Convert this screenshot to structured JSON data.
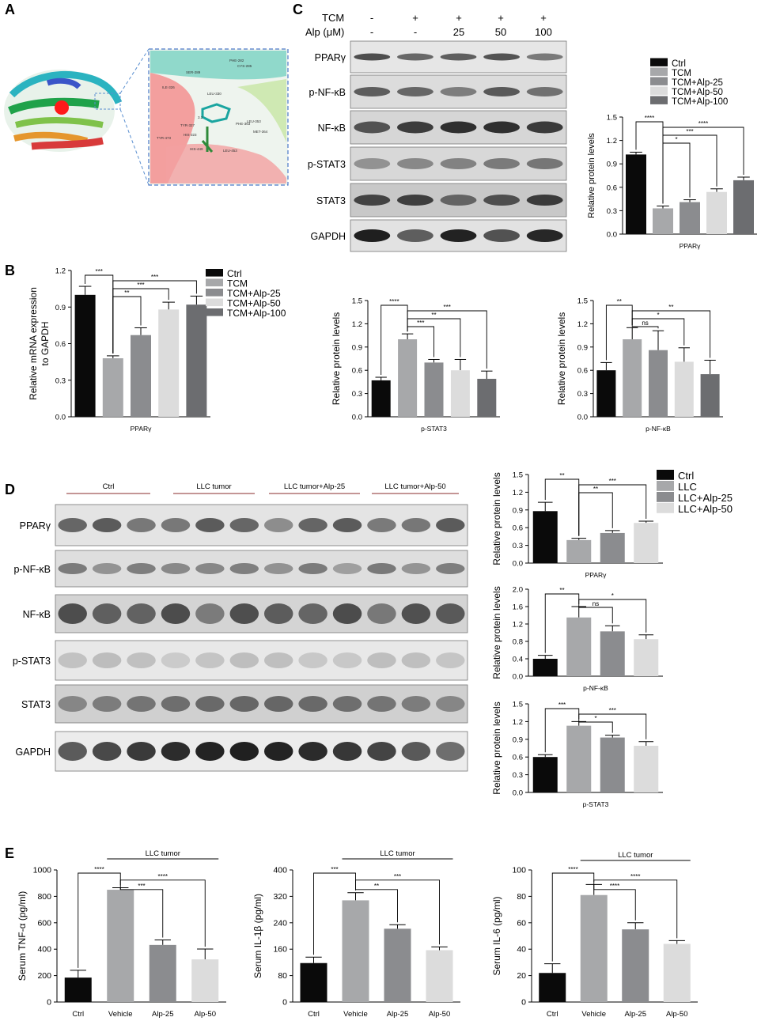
{
  "panels": {
    "A": "A",
    "B": "B",
    "C": "C",
    "D": "D",
    "E": "E"
  },
  "colors": {
    "ctrl": "#0a0a0a",
    "tcm": "#a7a8aa",
    "alp25": "#8b8c8f",
    "alp50": "#dcdcdc",
    "alp100": "#6c6d70"
  },
  "panel_a": {
    "residue_labels": [
      "PHE-282",
      "CYS-285",
      "SER-289",
      "ILE-326",
      "LEU-330",
      "TYR-327",
      "HIS-323",
      "PHE-363",
      "LEU-353",
      "MET-364",
      "HIS-449",
      "LEU-453",
      "TYR-473",
      "3.2"
    ]
  },
  "panel_c": {
    "rows": [
      "TCM",
      "Alp (μM)"
    ],
    "treatment": [
      "-",
      "+",
      "+",
      "+",
      "+"
    ],
    "alp": [
      "-",
      "-",
      "25",
      "50",
      "100"
    ],
    "blots": [
      "PPARγ",
      "p-NF-κB",
      "NF-κB",
      "p-STAT3",
      "STAT3",
      "GAPDH"
    ]
  },
  "panel_d": {
    "groups": [
      "Ctrl",
      "LLC tumor",
      "LLC tumor+Alp-25",
      "LLC tumor+Alp-50"
    ],
    "blots": [
      "PPARγ",
      "p-NF-κB",
      "NF-κB",
      "p-STAT3",
      "STAT3",
      "GAPDH"
    ]
  },
  "chart_data": [
    {
      "id": "C_PPARg",
      "type": "bar",
      "categories": [
        "Ctrl",
        "TCM",
        "TCM+Alp-25",
        "TCM+Alp-50",
        "TCM+Alp-100"
      ],
      "values": [
        1.02,
        0.33,
        0.41,
        0.54,
        0.69
      ],
      "errors": [
        0.03,
        0.03,
        0.03,
        0.04,
        0.04
      ],
      "ylabel": "Relative protein levels",
      "xlabel": "PPARγ",
      "ylim": [
        0,
        1.5
      ],
      "yticks": [
        "0.0",
        "0.3",
        "0.6",
        "0.9",
        "1.2",
        "1.5"
      ],
      "legend": [
        "Ctrl",
        "TCM",
        "TCM+Alp-25",
        "TCM+Alp-50",
        "TCM+Alp-100"
      ],
      "legend_position": "top",
      "significance": [
        {
          "from": 0,
          "to": 1,
          "label": "****"
        },
        {
          "from": 1,
          "to": 2,
          "label": "*"
        },
        {
          "from": 1,
          "to": 3,
          "label": "***"
        },
        {
          "from": 1,
          "to": 4,
          "label": "****"
        }
      ]
    },
    {
      "id": "B_mRNA",
      "type": "bar",
      "categories": [
        "Ctrl",
        "TCM",
        "TCM+Alp-25",
        "TCM+Alp-50",
        "TCM+Alp-100"
      ],
      "values": [
        1.0,
        0.48,
        0.67,
        0.88,
        0.92
      ],
      "errors": [
        0.07,
        0.02,
        0.06,
        0.06,
        0.07
      ],
      "ylabel": "Relative mRNA expression\nto GAPDH",
      "xlabel": "PPARγ",
      "ylim": [
        0,
        1.2
      ],
      "yticks": [
        "0.0",
        "0.3",
        "0.6",
        "0.9",
        "1.2"
      ],
      "legend": [
        "Ctrl",
        "TCM",
        "TCM+Alp-25",
        "TCM+Alp-50",
        "TCM+Alp-100"
      ],
      "legend_position": "right",
      "significance": [
        {
          "from": 0,
          "to": 1,
          "label": "***"
        },
        {
          "from": 1,
          "to": 2,
          "label": "**"
        },
        {
          "from": 1,
          "to": 3,
          "label": "***"
        },
        {
          "from": 1,
          "to": 4,
          "label": "***"
        }
      ]
    },
    {
      "id": "B_pSTAT3",
      "type": "bar",
      "categories": [
        "Ctrl",
        "TCM",
        "TCM+Alp-25",
        "TCM+Alp-50",
        "TCM+Alp-100"
      ],
      "values": [
        0.47,
        1.0,
        0.7,
        0.6,
        0.49
      ],
      "errors": [
        0.04,
        0.07,
        0.04,
        0.14,
        0.1
      ],
      "ylabel": "Relative protein levels",
      "xlabel": "p-STAT3",
      "ylim": [
        0,
        1.5
      ],
      "yticks": [
        "0.0",
        "0.3",
        "0.6",
        "0.9",
        "1.2",
        "1.5"
      ],
      "significance": [
        {
          "from": 0,
          "to": 1,
          "label": "****"
        },
        {
          "from": 1,
          "to": 2,
          "label": "***"
        },
        {
          "from": 1,
          "to": 3,
          "label": "**"
        },
        {
          "from": 1,
          "to": 4,
          "label": "***"
        }
      ]
    },
    {
      "id": "B_pNFkB",
      "type": "bar",
      "categories": [
        "Ctrl",
        "TCM",
        "TCM+Alp-25",
        "TCM+Alp-50",
        "TCM+Alp-100"
      ],
      "values": [
        0.6,
        1.0,
        0.86,
        0.71,
        0.55
      ],
      "errors": [
        0.1,
        0.15,
        0.25,
        0.18,
        0.18
      ],
      "ylabel": "Relative protein levels",
      "xlabel": "p-NF-κB",
      "ylim": [
        0,
        1.5
      ],
      "yticks": [
        "0.0",
        "0.3",
        "0.6",
        "0.9",
        "1.2",
        "1.5"
      ],
      "significance": [
        {
          "from": 0,
          "to": 1,
          "label": "**"
        },
        {
          "from": 1,
          "to": 2,
          "label": "ns"
        },
        {
          "from": 1,
          "to": 3,
          "label": "*"
        },
        {
          "from": 1,
          "to": 4,
          "label": "**"
        }
      ]
    },
    {
      "id": "D_PPARg",
      "type": "bar",
      "categories": [
        "Ctrl",
        "LLC",
        "LLC+Alp-25",
        "LLC+Alp-50"
      ],
      "values": [
        0.88,
        0.39,
        0.51,
        0.68
      ],
      "errors": [
        0.15,
        0.03,
        0.04,
        0.03
      ],
      "ylabel": "Relative protein levels",
      "xlabel": "PPARγ",
      "ylim": [
        0,
        1.5
      ],
      "yticks": [
        "0.0",
        "0.3",
        "0.6",
        "0.9",
        "1.2",
        "1.5"
      ],
      "legend": [
        "Ctrl",
        "LLC",
        "LLC+Alp-25",
        "LLC+Alp-50"
      ],
      "legend_position": "right",
      "significance": [
        {
          "from": 0,
          "to": 1,
          "label": "**"
        },
        {
          "from": 1,
          "to": 2,
          "label": "**"
        },
        {
          "from": 1,
          "to": 3,
          "label": "***"
        }
      ]
    },
    {
      "id": "D_pNFkB",
      "type": "bar",
      "categories": [
        "Ctrl",
        "LLC",
        "LLC+Alp-25",
        "LLC+Alp-50"
      ],
      "values": [
        0.4,
        1.35,
        1.03,
        0.85
      ],
      "errors": [
        0.08,
        0.25,
        0.13,
        0.1
      ],
      "ylabel": "Relative protein levels",
      "xlabel": "p-NF-κB",
      "ylim": [
        0,
        2.0
      ],
      "yticks": [
        "0.0",
        "0.4",
        "0.8",
        "1.2",
        "1.6",
        "2.0"
      ],
      "significance": [
        {
          "from": 0,
          "to": 1,
          "label": "**"
        },
        {
          "from": 1,
          "to": 2,
          "label": "ns"
        },
        {
          "from": 1,
          "to": 3,
          "label": "*"
        }
      ]
    },
    {
      "id": "D_pSTAT3",
      "type": "bar",
      "categories": [
        "Ctrl",
        "LLC",
        "LLC+Alp-25",
        "LLC+Alp-50"
      ],
      "values": [
        0.6,
        1.13,
        0.93,
        0.79
      ],
      "errors": [
        0.04,
        0.07,
        0.04,
        0.07
      ],
      "ylabel": "Relative protein levels",
      "xlabel": "p-STAT3",
      "ylim": [
        0,
        1.5
      ],
      "yticks": [
        "0.0",
        "0.3",
        "0.6",
        "0.9",
        "1.2",
        "1.5"
      ],
      "significance": [
        {
          "from": 0,
          "to": 1,
          "label": "***"
        },
        {
          "from": 1,
          "to": 2,
          "label": "*"
        },
        {
          "from": 1,
          "to": 3,
          "label": "***"
        }
      ]
    },
    {
      "id": "E_TNF",
      "type": "bar",
      "categories": [
        "Ctrl",
        "Vehicle",
        "Alp-25",
        "Alp-50"
      ],
      "values": [
        185,
        850,
        432,
        323
      ],
      "errors": [
        55,
        15,
        38,
        78
      ],
      "ylabel": "Serum TNF-α (pg/ml)",
      "xlabel": "",
      "ylim": [
        0,
        1000
      ],
      "yticks": [
        "0",
        "200",
        "400",
        "600",
        "800",
        "1000"
      ],
      "group_label": "LLC tumor",
      "significance": [
        {
          "from": 0,
          "to": 1,
          "label": "****"
        },
        {
          "from": 1,
          "to": 2,
          "label": "***"
        },
        {
          "from": 1,
          "to": 3,
          "label": "****"
        }
      ]
    },
    {
      "id": "E_IL1b",
      "type": "bar",
      "categories": [
        "Ctrl",
        "Vehicle",
        "Alp-25",
        "Alp-50"
      ],
      "values": [
        118,
        308,
        222,
        157
      ],
      "errors": [
        18,
        23,
        12,
        10
      ],
      "ylabel": "Serum IL-1β (pg/ml)",
      "xlabel": "",
      "ylim": [
        0,
        400
      ],
      "yticks": [
        "0",
        "80",
        "160",
        "240",
        "320",
        "400"
      ],
      "group_label": "LLC tumor",
      "significance": [
        {
          "from": 0,
          "to": 1,
          "label": "***"
        },
        {
          "from": 1,
          "to": 2,
          "label": "**"
        },
        {
          "from": 1,
          "to": 3,
          "label": "***"
        }
      ]
    },
    {
      "id": "E_IL6",
      "type": "bar",
      "categories": [
        "Ctrl",
        "Vehicle",
        "Alp-25",
        "Alp-50"
      ],
      "values": [
        22,
        81,
        55,
        44
      ],
      "errors": [
        7,
        8,
        5,
        2.5
      ],
      "ylabel": "Serum IL-6 (pg/ml)",
      "xlabel": "",
      "ylim": [
        0,
        100
      ],
      "yticks": [
        "0",
        "20",
        "40",
        "60",
        "80",
        "100"
      ],
      "group_label": "LLC tumor",
      "significance": [
        {
          "from": 0,
          "to": 1,
          "label": "****"
        },
        {
          "from": 1,
          "to": 2,
          "label": "****"
        },
        {
          "from": 1,
          "to": 3,
          "label": "****"
        }
      ]
    }
  ]
}
